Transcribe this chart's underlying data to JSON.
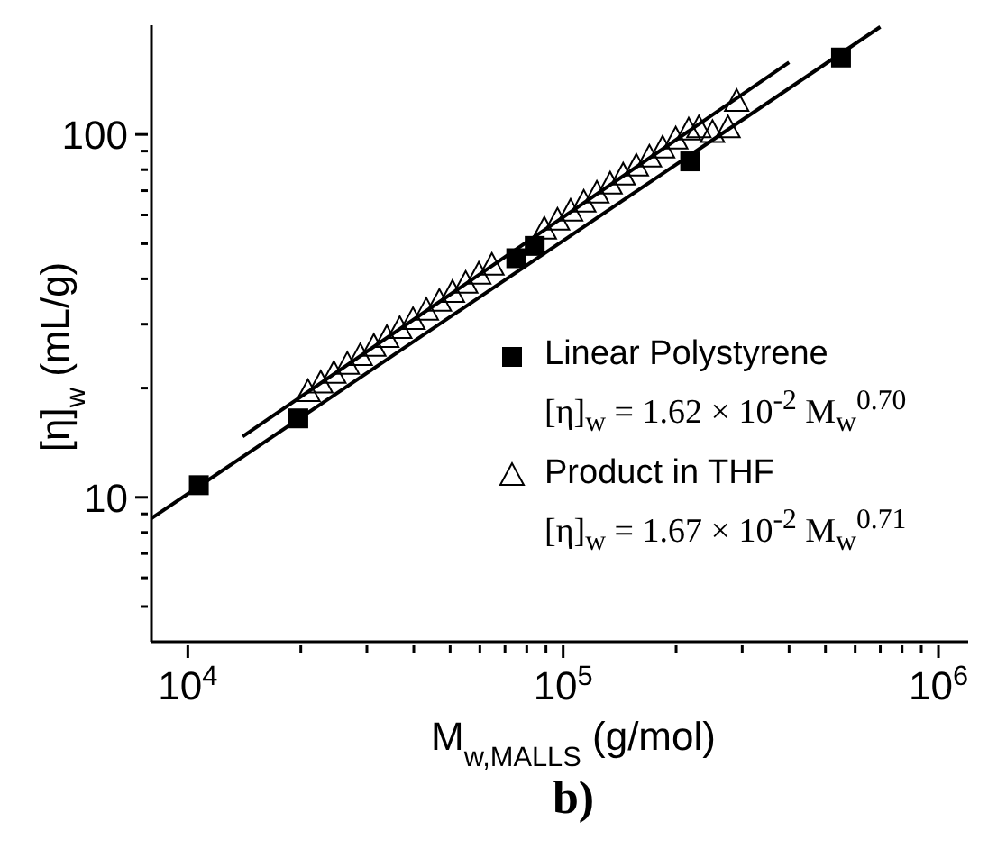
{
  "chart_data": {
    "type": "scatter",
    "title": "b)",
    "xlabel": "M$_{w,MALLS}$ (g/mol)",
    "ylabel": "[η]$_{w}$ (mL/g)",
    "log": "xy",
    "grid": false,
    "legend": "bottom right",
    "xlim": [
      8000,
      1200000
    ],
    "xticks": [
      {
        "value": 10000,
        "label": "10$^{4}$"
      },
      {
        "value": 20000,
        "label": null
      },
      {
        "value": 30000,
        "label": null
      },
      {
        "value": 40000,
        "label": null
      },
      {
        "value": 50000,
        "label": null
      },
      {
        "value": 60000,
        "label": null
      },
      {
        "value": 70000,
        "label": null
      },
      {
        "value": 80000,
        "label": null
      },
      {
        "value": 90000,
        "label": null
      },
      {
        "value": 100000,
        "label": "10$^{5}$"
      },
      {
        "value": 200000,
        "label": null
      },
      {
        "value": 300000,
        "label": null
      },
      {
        "value": 400000,
        "label": null
      },
      {
        "value": 500000,
        "label": null
      },
      {
        "value": 600000,
        "label": null
      },
      {
        "value": 700000,
        "label": null
      },
      {
        "value": 800000,
        "label": null
      },
      {
        "value": 900000,
        "label": null
      },
      {
        "value": 1000000,
        "label": "10$^{6}$"
      }
    ],
    "ylim": [
      4,
      200
    ],
    "yticks": [
      {
        "value": 5,
        "label": null
      },
      {
        "value": 6,
        "label": null
      },
      {
        "value": 7,
        "label": null
      },
      {
        "value": 8,
        "label": null
      },
      {
        "value": 9,
        "label": null
      },
      10,
      {
        "value": 20,
        "label": null
      },
      {
        "value": 30,
        "label": null
      },
      {
        "value": 40,
        "label": null
      },
      {
        "value": 50,
        "label": null
      },
      {
        "value": 60,
        "label": null
      },
      {
        "value": 70,
        "label": null
      },
      {
        "value": 80,
        "label": null
      },
      {
        "value": 90,
        "label": null
      },
      100
    ],
    "annotations": [
      "[η]$_{w}$ = 1.62 × 10$^{-2}$ M$_{w}$$^{0.70}$",
      "[η]$_{w}$ = 1.67 × 10$^{-2}$ M$_{w}$$^{0.71}$"
    ],
    "series": [
      {
        "name": "Linear Polystyrene",
        "color": "#000000",
        "marker": "square",
        "x": [
          10700,
          19700,
          75000,
          84000,
          218000,
          550000
        ],
        "values": [
          10.8,
          16.5,
          45.6,
          49.3,
          84.3,
          163
        ]
      },
      {
        "name": "Product in THF",
        "color": "#000000",
        "marker": "triangle",
        "x": [
          20900,
          22600,
          24500,
          26600,
          28800,
          31300,
          33900,
          36700,
          39800,
          43200,
          46800,
          50700,
          55000,
          59600,
          64600,
          70000,
          75900,
          82200,
          89100,
          96600,
          104700,
          113500,
          123000,
          133400,
          144500,
          156700,
          169800,
          184100,
          199500,
          216000,
          230000,
          250000,
          275000,
          290000
        ],
        "values": [
          19.5,
          20.6,
          21.9,
          23.2,
          24.5,
          26.0,
          27.5,
          29.1,
          30.8,
          32.7,
          34.6,
          36.6,
          38.8,
          41.1,
          43.5,
          null,
          null,
          null,
          54.7,
          57.9,
          61.3,
          64.9,
          68.7,
          72.8,
          77.1,
          81.6,
          86.4,
          91.5,
          96.9,
          102.6,
          104,
          101,
          104,
          123
        ]
      },
      {
        "type": "line",
        "color": "#000000",
        "x": [
          8000,
          700000
        ],
        "values": [
          8.75,
          198
        ]
      },
      {
        "type": "line",
        "color": "#000000",
        "x": [
          14000,
          400000
        ],
        "values": [
          14.7,
          158
        ]
      }
    ]
  }
}
